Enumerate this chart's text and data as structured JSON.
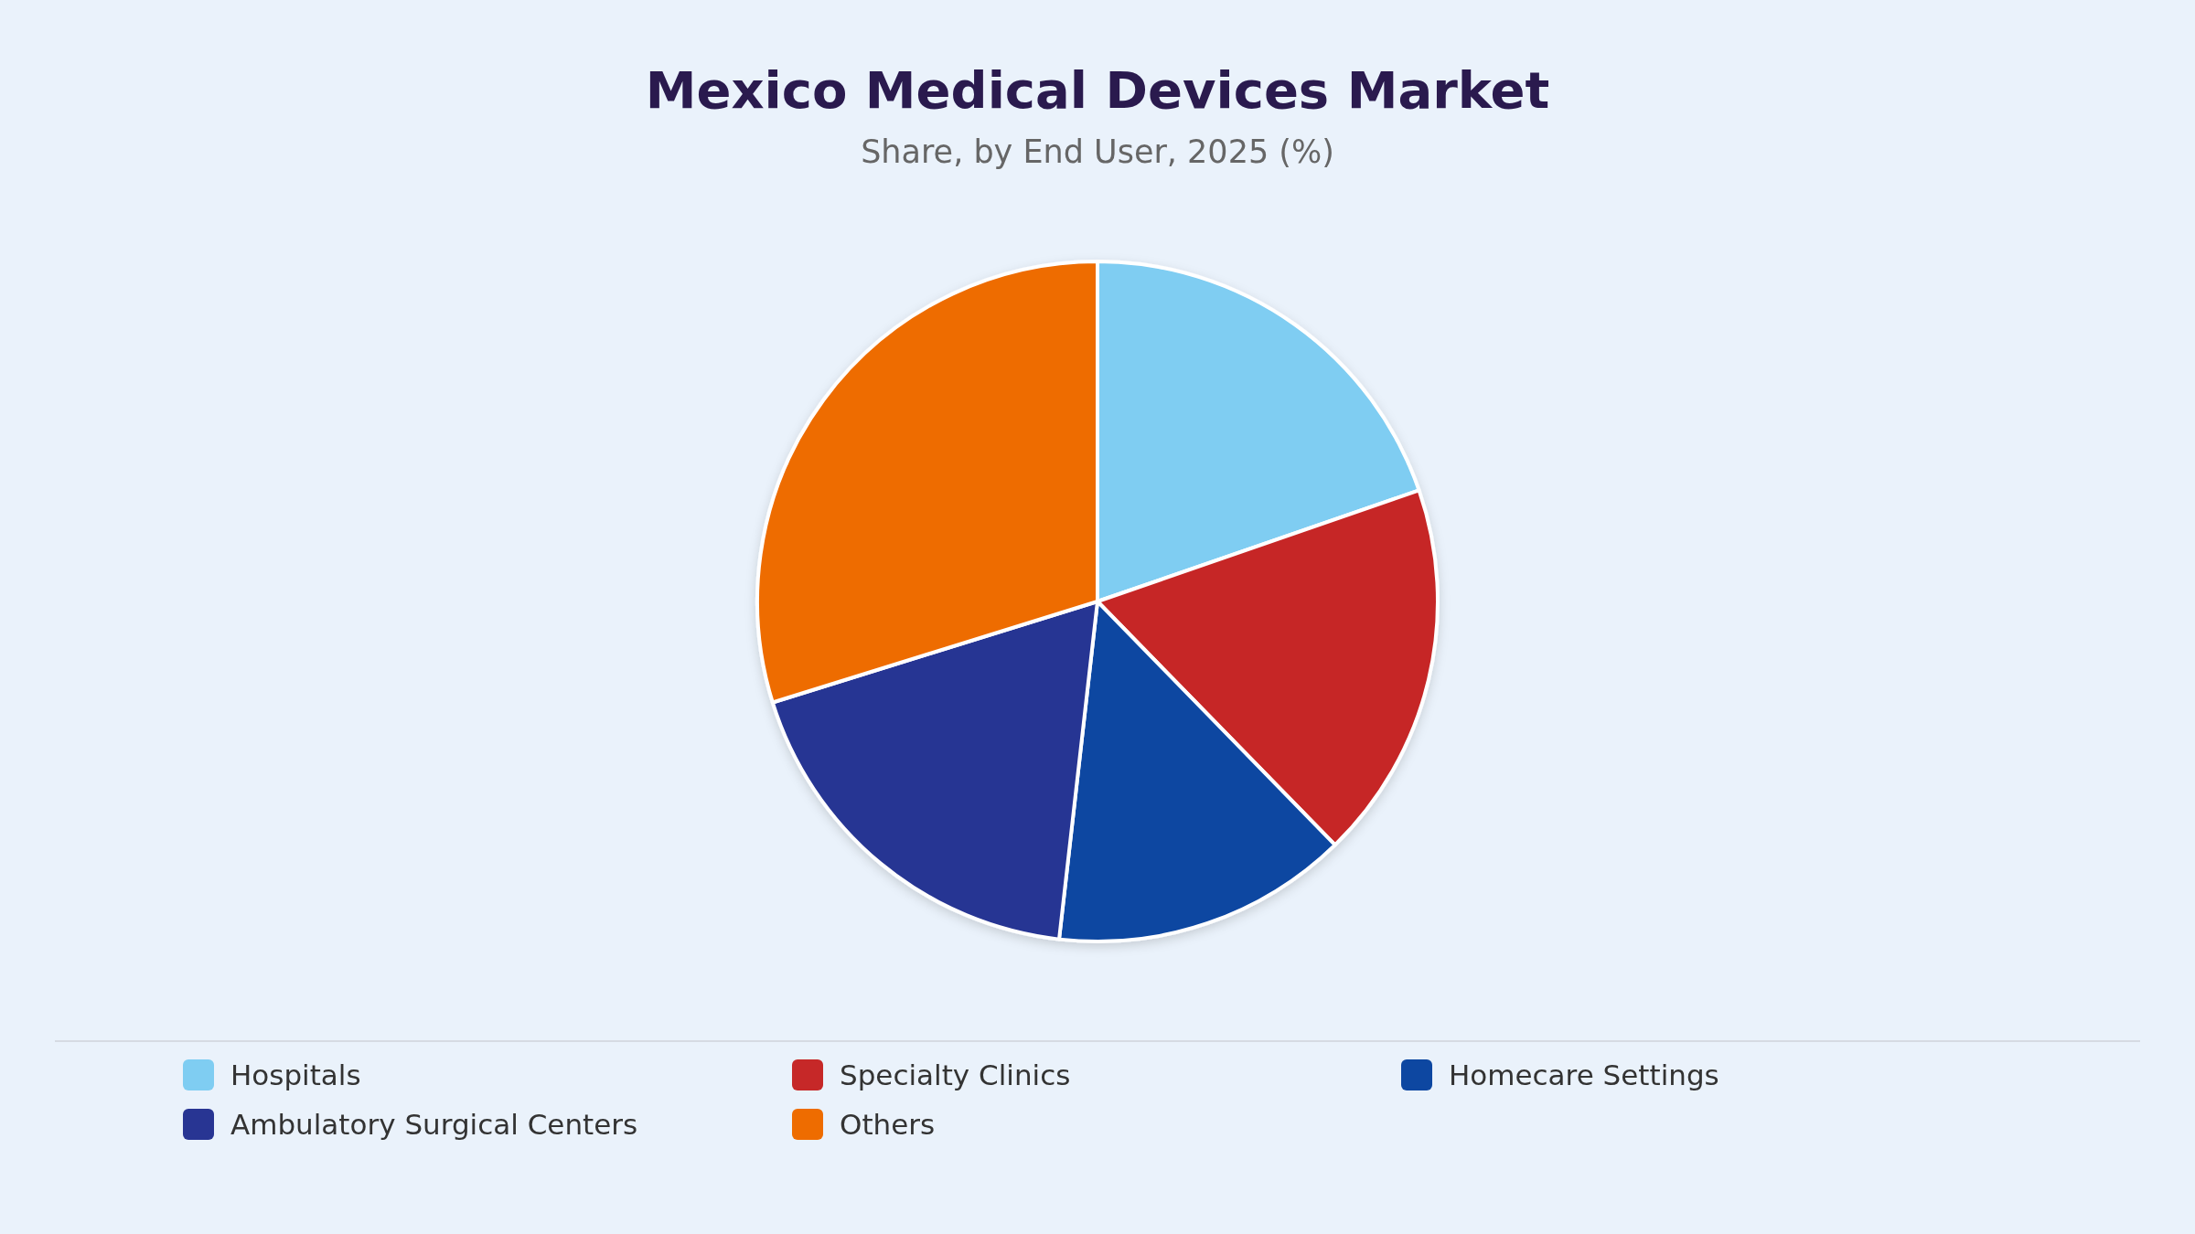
{
  "chart_data": {
    "type": "pie",
    "title": "Mexico Medical Devices Market",
    "subtitle": "Share, by End User, 2025 (%)",
    "categories": [
      "Hospitals",
      "Specialty Clinics",
      "Homecare Settings",
      "Ambulatory Surgical Centers",
      "Others"
    ],
    "values": [
      19.7,
      18.0,
      14.1,
      18.4,
      29.8
    ],
    "colors": [
      "#7fcdf2",
      "#c62828",
      "#0d47a1",
      "#283593",
      "#ee6c00"
    ],
    "legend": "bottom"
  }
}
